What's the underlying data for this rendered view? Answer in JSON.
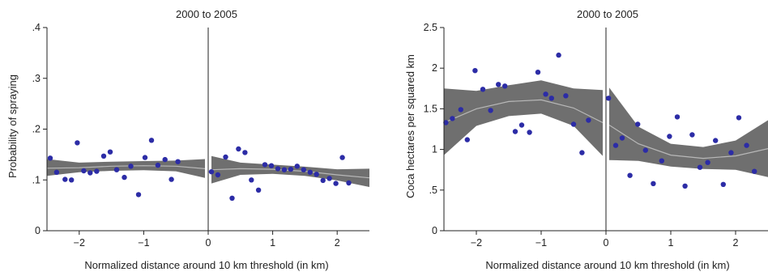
{
  "chart_data": [
    {
      "type": "scatter",
      "title": "2000 to 2005",
      "xlabel": "Normalized distance around 10 km threshold (in km)",
      "ylabel": "Probability of spraying",
      "xlim": [
        -2.5,
        2.5
      ],
      "ylim": [
        0,
        0.4
      ],
      "xticks": [
        -2,
        -1,
        0,
        1,
        2
      ],
      "xtick_labels": [
        "−2",
        "−1",
        "0",
        "1",
        "2"
      ],
      "yticks": [
        0,
        0.1,
        0.2,
        0.3,
        0.4
      ],
      "ytick_labels": [
        "0",
        ".1",
        ".2",
        ".3",
        ".4"
      ],
      "grid": false,
      "cutoff": 0,
      "colors": {
        "points": "#2c2ca6",
        "band": "#6f6f6f",
        "fit": "#b8b8b8",
        "axis": "#222222"
      },
      "points": [
        {
          "x": -2.45,
          "y": 0.143
        },
        {
          "x": -2.35,
          "y": 0.115
        },
        {
          "x": -2.22,
          "y": 0.101
        },
        {
          "x": -2.12,
          "y": 0.1
        },
        {
          "x": -2.03,
          "y": 0.173
        },
        {
          "x": -1.93,
          "y": 0.118
        },
        {
          "x": -1.83,
          "y": 0.114
        },
        {
          "x": -1.73,
          "y": 0.117
        },
        {
          "x": -1.62,
          "y": 0.147
        },
        {
          "x": -1.52,
          "y": 0.155
        },
        {
          "x": -1.42,
          "y": 0.12
        },
        {
          "x": -1.3,
          "y": 0.105
        },
        {
          "x": -1.2,
          "y": 0.127
        },
        {
          "x": -1.08,
          "y": 0.071
        },
        {
          "x": -0.98,
          "y": 0.144
        },
        {
          "x": -0.88,
          "y": 0.178
        },
        {
          "x": -0.78,
          "y": 0.129
        },
        {
          "x": -0.67,
          "y": 0.14
        },
        {
          "x": -0.57,
          "y": 0.101
        },
        {
          "x": -0.47,
          "y": 0.136
        },
        {
          "x": 0.05,
          "y": 0.116
        },
        {
          "x": 0.15,
          "y": 0.11
        },
        {
          "x": 0.27,
          "y": 0.145
        },
        {
          "x": 0.37,
          "y": 0.064
        },
        {
          "x": 0.47,
          "y": 0.161
        },
        {
          "x": 0.57,
          "y": 0.154
        },
        {
          "x": 0.67,
          "y": 0.1
        },
        {
          "x": 0.78,
          "y": 0.08
        },
        {
          "x": 0.88,
          "y": 0.13
        },
        {
          "x": 0.98,
          "y": 0.128
        },
        {
          "x": 1.08,
          "y": 0.122
        },
        {
          "x": 1.18,
          "y": 0.12
        },
        {
          "x": 1.28,
          "y": 0.121
        },
        {
          "x": 1.38,
          "y": 0.127
        },
        {
          "x": 1.48,
          "y": 0.12
        },
        {
          "x": 1.58,
          "y": 0.115
        },
        {
          "x": 1.68,
          "y": 0.111
        },
        {
          "x": 1.78,
          "y": 0.099
        },
        {
          "x": 1.88,
          "y": 0.103
        },
        {
          "x": 1.98,
          "y": 0.093
        },
        {
          "x": 2.08,
          "y": 0.144
        },
        {
          "x": 2.18,
          "y": 0.094
        }
      ],
      "fit_left": [
        {
          "x": -2.5,
          "fit": 0.123,
          "lo": 0.108,
          "hi": 0.141
        },
        {
          "x": -2.0,
          "fit": 0.124,
          "lo": 0.115,
          "hi": 0.134
        },
        {
          "x": -1.5,
          "fit": 0.127,
          "lo": 0.118,
          "hi": 0.136
        },
        {
          "x": -1.0,
          "fit": 0.128,
          "lo": 0.119,
          "hi": 0.137
        },
        {
          "x": -0.5,
          "fit": 0.127,
          "lo": 0.117,
          "hi": 0.138
        },
        {
          "x": -0.05,
          "fit": 0.122,
          "lo": 0.104,
          "hi": 0.141
        }
      ],
      "fit_right": [
        {
          "x": 0.05,
          "fit": 0.12,
          "lo": 0.093,
          "hi": 0.147
        },
        {
          "x": 0.5,
          "fit": 0.122,
          "lo": 0.11,
          "hi": 0.134
        },
        {
          "x": 1.0,
          "fit": 0.121,
          "lo": 0.112,
          "hi": 0.13
        },
        {
          "x": 1.5,
          "fit": 0.117,
          "lo": 0.108,
          "hi": 0.126
        },
        {
          "x": 2.0,
          "fit": 0.11,
          "lo": 0.099,
          "hi": 0.121
        },
        {
          "x": 2.5,
          "fit": 0.104,
          "lo": 0.086,
          "hi": 0.122
        }
      ]
    },
    {
      "type": "scatter",
      "title": "2000 to 2005",
      "xlabel": "Normalized distance around 10 km threshold (in km)",
      "ylabel": "Coca hectares per squared km",
      "xlim": [
        -2.5,
        2.5
      ],
      "ylim": [
        0,
        2.5
      ],
      "xticks": [
        -2,
        -1,
        0,
        1,
        2
      ],
      "xtick_labels": [
        "−2",
        "−1",
        "0",
        "1",
        "2"
      ],
      "yticks": [
        0,
        0.5,
        1,
        1.5,
        2,
        2.5
      ],
      "ytick_labels": [
        "0",
        ".5",
        "1",
        "1.5",
        "2",
        "2.5"
      ],
      "grid": false,
      "cutoff": 0,
      "colors": {
        "points": "#2c2ca6",
        "band": "#6f6f6f",
        "fit": "#b8b8b8",
        "axis": "#222222"
      },
      "points": [
        {
          "x": -2.47,
          "y": 1.33
        },
        {
          "x": -2.37,
          "y": 1.38
        },
        {
          "x": -2.24,
          "y": 1.49
        },
        {
          "x": -2.14,
          "y": 1.12
        },
        {
          "x": -2.02,
          "y": 1.97
        },
        {
          "x": -1.9,
          "y": 1.74
        },
        {
          "x": -1.78,
          "y": 1.48
        },
        {
          "x": -1.66,
          "y": 1.8
        },
        {
          "x": -1.56,
          "y": 1.78
        },
        {
          "x": -1.4,
          "y": 1.22
        },
        {
          "x": -1.3,
          "y": 1.3
        },
        {
          "x": -1.18,
          "y": 1.21
        },
        {
          "x": -1.05,
          "y": 1.95
        },
        {
          "x": -0.93,
          "y": 1.68
        },
        {
          "x": -0.84,
          "y": 1.63
        },
        {
          "x": -0.73,
          "y": 2.16
        },
        {
          "x": -0.62,
          "y": 1.66
        },
        {
          "x": -0.5,
          "y": 1.31
        },
        {
          "x": -0.37,
          "y": 0.96
        },
        {
          "x": -0.27,
          "y": 1.36
        },
        {
          "x": 0.04,
          "y": 1.63
        },
        {
          "x": 0.15,
          "y": 1.05
        },
        {
          "x": 0.25,
          "y": 1.14
        },
        {
          "x": 0.37,
          "y": 0.68
        },
        {
          "x": 0.49,
          "y": 1.31
        },
        {
          "x": 0.61,
          "y": 0.99
        },
        {
          "x": 0.73,
          "y": 0.58
        },
        {
          "x": 0.86,
          "y": 0.86
        },
        {
          "x": 0.98,
          "y": 1.16
        },
        {
          "x": 1.1,
          "y": 1.4
        },
        {
          "x": 1.22,
          "y": 0.55
        },
        {
          "x": 1.33,
          "y": 1.18
        },
        {
          "x": 1.45,
          "y": 0.78
        },
        {
          "x": 1.57,
          "y": 0.84
        },
        {
          "x": 1.69,
          "y": 1.11
        },
        {
          "x": 1.81,
          "y": 0.57
        },
        {
          "x": 1.93,
          "y": 0.96
        },
        {
          "x": 2.05,
          "y": 1.39
        },
        {
          "x": 2.17,
          "y": 1.05
        },
        {
          "x": 2.29,
          "y": 0.73
        }
      ],
      "fit_left": [
        {
          "x": -2.5,
          "fit": 1.33,
          "lo": 0.93,
          "hi": 1.75
        },
        {
          "x": -2.0,
          "fit": 1.5,
          "lo": 1.29,
          "hi": 1.72
        },
        {
          "x": -1.5,
          "fit": 1.59,
          "lo": 1.41,
          "hi": 1.79
        },
        {
          "x": -1.0,
          "fit": 1.61,
          "lo": 1.44,
          "hi": 1.85
        },
        {
          "x": -0.5,
          "fit": 1.51,
          "lo": 1.29,
          "hi": 1.75
        },
        {
          "x": -0.05,
          "fit": 1.33,
          "lo": 0.92,
          "hi": 1.73
        }
      ],
      "fit_right": [
        {
          "x": 0.05,
          "fit": 1.3,
          "lo": 0.87,
          "hi": 1.76
        },
        {
          "x": 0.5,
          "fit": 1.07,
          "lo": 0.86,
          "hi": 1.28
        },
        {
          "x": 1.0,
          "fit": 0.93,
          "lo": 0.79,
          "hi": 1.07
        },
        {
          "x": 1.5,
          "fit": 0.89,
          "lo": 0.76,
          "hi": 1.03
        },
        {
          "x": 2.0,
          "fit": 0.92,
          "lo": 0.75,
          "hi": 1.11
        },
        {
          "x": 2.5,
          "fit": 1.01,
          "lo": 0.66,
          "hi": 1.36
        }
      ]
    }
  ]
}
